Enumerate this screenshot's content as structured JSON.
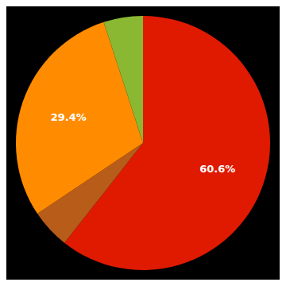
{
  "chart_data": {
    "type": "pie",
    "values": [
      60.6,
      5.0,
      29.4,
      5.0
    ],
    "colors": [
      "#e01a00",
      "#b85c1a",
      "#ff8c00",
      "#8ab832"
    ],
    "value_labels": [
      "60.6%",
      null,
      "29.4%",
      null
    ],
    "data_labels": true
  }
}
